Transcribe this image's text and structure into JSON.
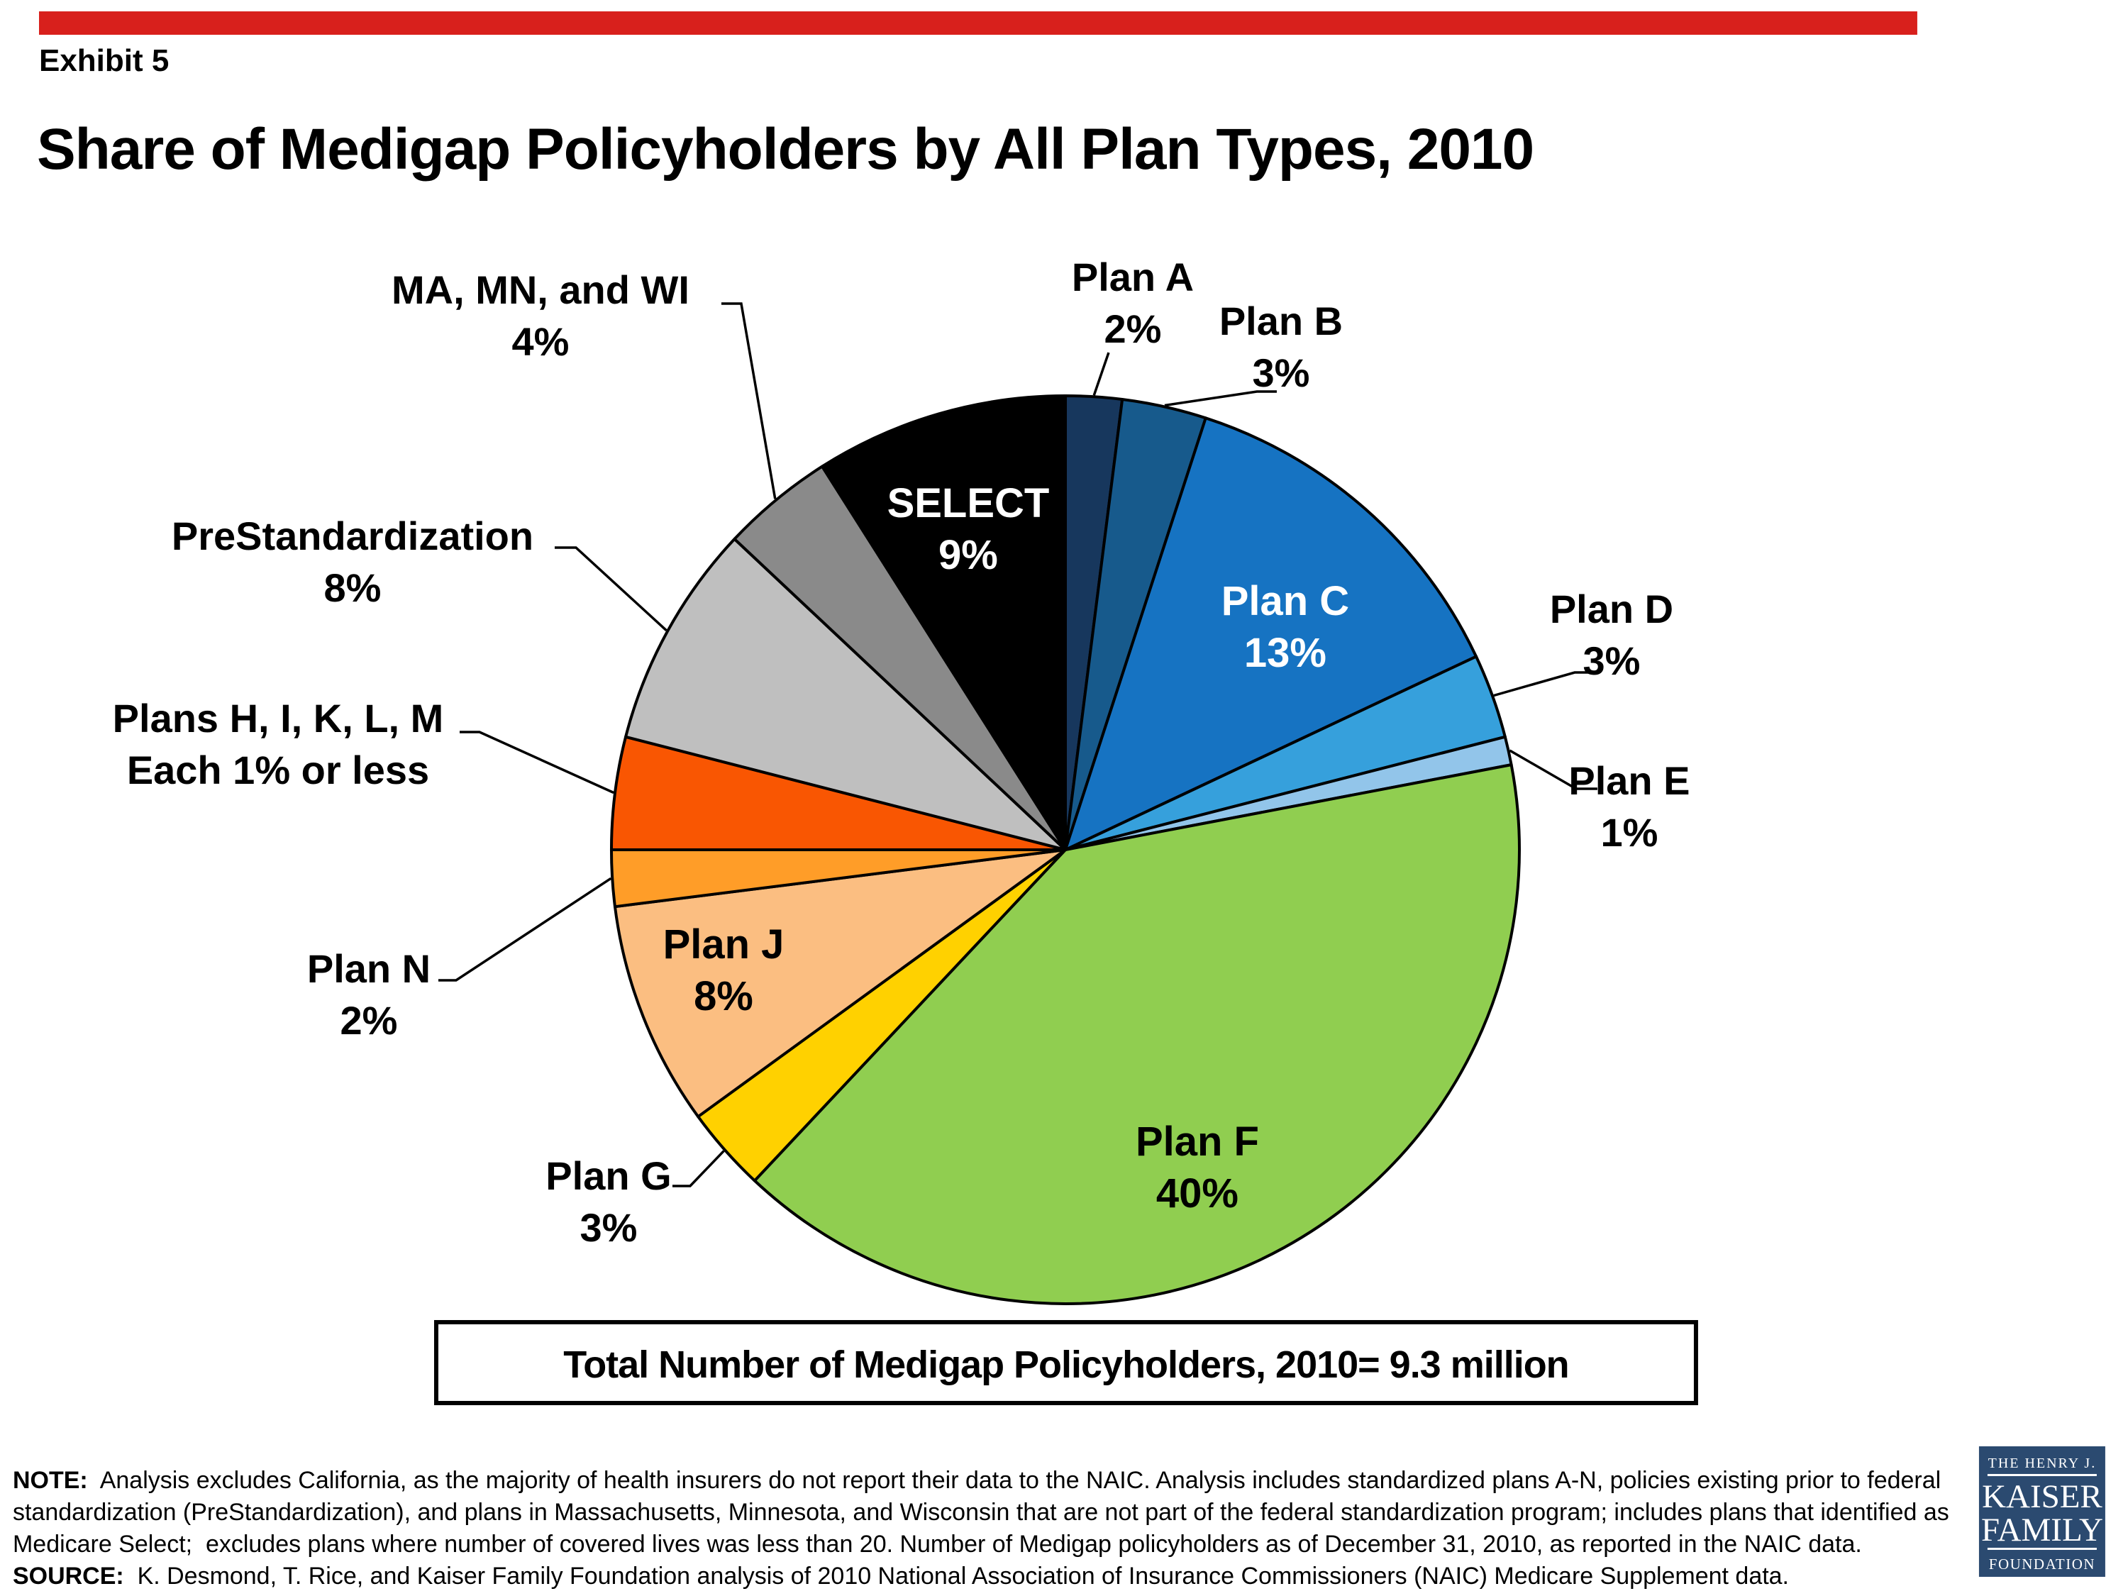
{
  "page": {
    "exhibit_label": "Exhibit 5",
    "title": "Share of Medigap Policyholders by All Plan Types, 2010",
    "accent_color": "#D8201C",
    "background_color": "#FFFFFF"
  },
  "chart_data": {
    "type": "pie",
    "title": "Share of Medigap Policyholders by All Plan Types, 2010",
    "total_label": "Total Number of Medigap Policyholders, 2010= 9.3 million",
    "unit": "percent of Medigap policyholders",
    "start_angle_deg": 0,
    "direction": "clockwise",
    "legend": "none (direct labels with leader lines)",
    "categories": [
      "Plan A",
      "Plan B",
      "Plan C",
      "Plan D",
      "Plan E",
      "Plan F",
      "Plan G",
      "Plan J",
      "Plan N",
      "Plans H, I, K, L, M",
      "PreStandardization",
      "MA, MN, and WI",
      "SELECT"
    ],
    "values": [
      2,
      3,
      13,
      3,
      1,
      40,
      3,
      8,
      2,
      4,
      8,
      4,
      9
    ],
    "slices": [
      {
        "name": "Plan A",
        "value": 2,
        "display": "2%",
        "color": "#17375D",
        "text_color": "#000000",
        "placement": "outside",
        "label_lines": [
          "Plan A",
          "2%"
        ],
        "label_pos": [
          1597,
          390
        ],
        "leader_start": [
          1563,
          497
        ],
        "leader_tick": 0
      },
      {
        "name": "Plan B",
        "value": 3,
        "display": "3%",
        "color": "#175A8C",
        "text_color": "#000000",
        "placement": "outside",
        "label_lines": [
          "Plan B",
          "3%"
        ],
        "label_pos": [
          1806,
          452
        ],
        "leader_start": [
          1800,
          552
        ],
        "leader_tick": -28
      },
      {
        "name": "Plan C",
        "value": 13,
        "display": "13%",
        "color": "#1673C2",
        "text_color": "#FFFFFF",
        "placement": "inside",
        "label_lines": [
          "Plan C",
          "13%"
        ],
        "label_pos": [
          1812,
          848
        ]
      },
      {
        "name": "Plan D",
        "value": 3,
        "display": "3%",
        "color": "#36A0DC",
        "text_color": "#000000",
        "placement": "outside",
        "label_lines": [
          "Plan D",
          "3%"
        ],
        "label_pos": [
          2272,
          858
        ],
        "leader_start": [
          2250,
          948
        ],
        "leader_tick": -30
      },
      {
        "name": "Plan E",
        "value": 1,
        "display": "1%",
        "color": "#92C5EA",
        "text_color": "#000000",
        "placement": "outside",
        "label_lines": [
          "Plan E",
          "1%"
        ],
        "label_pos": [
          2297,
          1100
        ],
        "leader_start": [
          2252,
          1112
        ],
        "leader_tick": -30
      },
      {
        "name": "Plan F",
        "value": 40,
        "display": "40%",
        "color": "#90CE50",
        "text_color": "#000000",
        "placement": "inside",
        "label_lines": [
          "Plan F",
          "40%"
        ],
        "label_pos": [
          1688,
          1610
        ]
      },
      {
        "name": "Plan G",
        "value": 3,
        "display": "3%",
        "color": "#FFD100",
        "text_color": "#000000",
        "placement": "outside",
        "label_lines": [
          "Plan G",
          "3%"
        ],
        "label_pos": [
          858,
          1657
        ],
        "leader_start": [
          948,
          1672
        ],
        "leader_tick": 25
      },
      {
        "name": "Plan J",
        "value": 8,
        "display": "8%",
        "color": "#FBBE81",
        "text_color": "#000000",
        "placement": "inside",
        "label_lines": [
          "Plan J",
          "8%"
        ],
        "label_pos": [
          1020,
          1332
        ]
      },
      {
        "name": "Plan N",
        "value": 2,
        "display": "2%",
        "color": "#FF9D28",
        "text_color": "#000000",
        "placement": "outside",
        "label_lines": [
          "Plan N",
          "2%"
        ],
        "label_pos": [
          520,
          1365
        ],
        "leader_start": [
          618,
          1382
        ],
        "leader_tick": 25
      },
      {
        "name": "Plans H, I, K, L, M",
        "value": 4,
        "display": "Each 1% or less",
        "color": "#F95602",
        "text_color": "#000000",
        "placement": "outside",
        "label_lines": [
          "Plans H, I, K, L, M",
          "Each 1% or less"
        ],
        "label_pos": [
          392,
          1012
        ],
        "leader_start": [
          648,
          1032
        ],
        "leader_tick": 28
      },
      {
        "name": "PreStandardization",
        "value": 8,
        "display": "8%",
        "color": "#BFBFBF",
        "text_color": "#000000",
        "placement": "outside",
        "label_lines": [
          "PreStandardization",
          "8%"
        ],
        "label_pos": [
          497,
          755
        ],
        "leader_start": [
          782,
          772
        ],
        "leader_tick": 30
      },
      {
        "name": "MA, MN, and WI",
        "value": 4,
        "display": "4%",
        "color": "#8A8A8A",
        "text_color": "#000000",
        "placement": "outside",
        "label_lines": [
          "MA, MN, and WI",
          "4%"
        ],
        "label_pos": [
          762,
          408
        ],
        "leader_start": [
          1017,
          428
        ],
        "leader_tick": 28
      },
      {
        "name": "SELECT",
        "value": 9,
        "display": "9%",
        "color": "#000000",
        "text_color": "#FFFFFF",
        "placement": "inside",
        "label_lines": [
          "SELECT",
          "9%"
        ],
        "label_pos": [
          1365,
          710
        ]
      }
    ]
  },
  "footer": {
    "note_lines": [
      {
        "lead": "NOTE:",
        "text": "  Analysis excludes California, as the majority of health insurers do not report their data to the NAIC. Analysis includes standardized plans A-N, policies existing prior to federal"
      },
      {
        "lead": "",
        "text": "standardization (PreStandardization), and plans in Massachusetts, Minnesota, and Wisconsin that are not part of the federal standardization program; includes plans that identified as"
      },
      {
        "lead": "",
        "text": "Medicare Select;  excludes plans where number of covered lives was less than 20. Number of Medigap policyholders as of December 31, 2010, as reported in the NAIC data."
      },
      {
        "lead": "SOURCE:",
        "text": "  K. Desmond, T. Rice, and Kaiser Family Foundation analysis of 2010 National Association of Insurance Commissioners (NAIC) Medicare Supplement data."
      }
    ],
    "logo": {
      "bg": "#2B4A70",
      "line1": "THE HENRY J.",
      "line2": "KAISER",
      "line3": "FAMILY",
      "line4": "FOUNDATION"
    }
  }
}
